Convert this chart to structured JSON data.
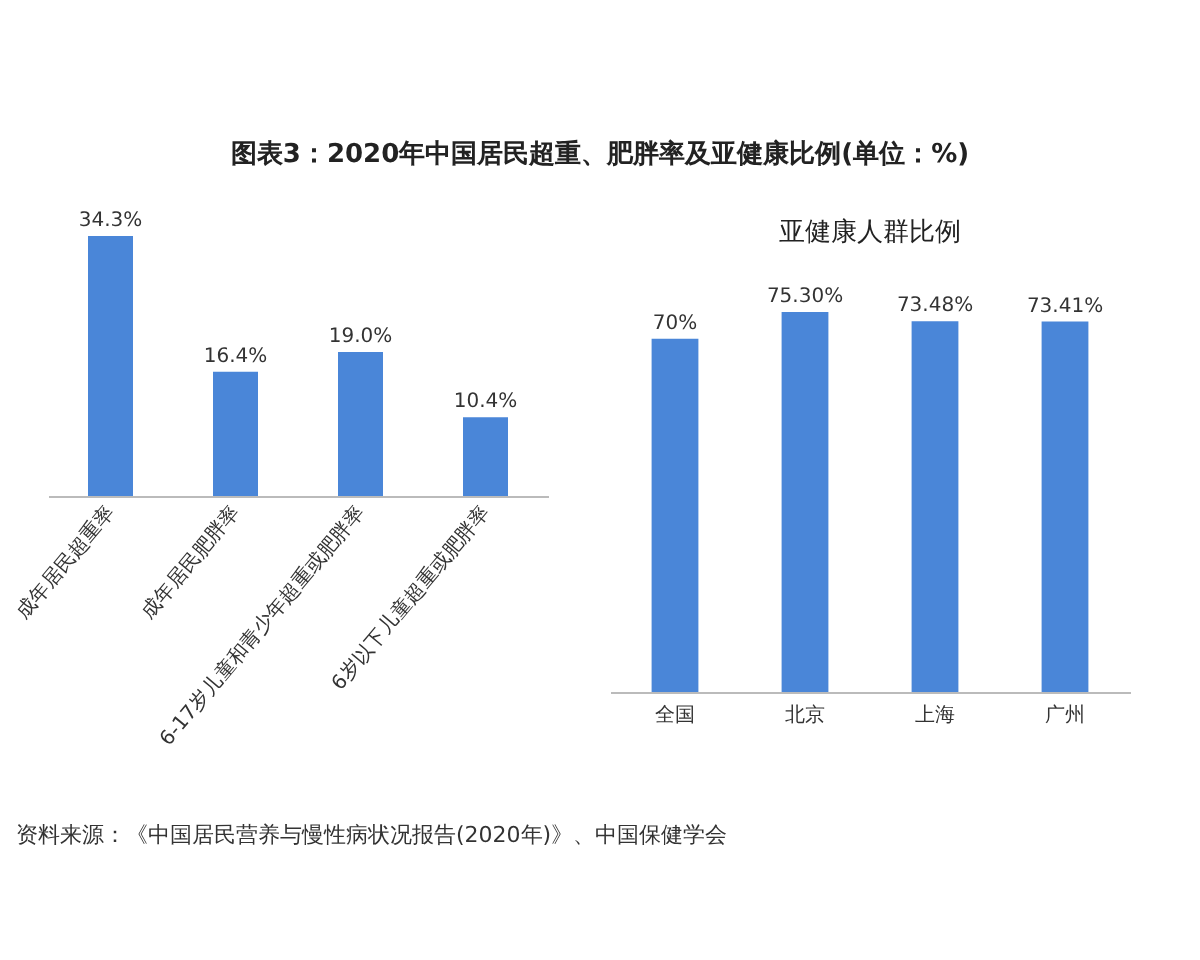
{
  "chart_data": [
    {
      "type": "bar",
      "title": "图表3：2020年中国居民超重、肥胖率及亚健康比例(单位：%)",
      "annotations": [
        "资料来源：《中国居民营养与慢性病状况报告(2020年)》、中国保健学会"
      ],
      "categories": [
        "成年居民超重率",
        "成年居民肥胖率",
        "6-17岁儿童和青少年超重或肥胖率",
        "6岁以下儿童超重或肥胖率"
      ],
      "series": [
        {
          "color": "#4a86d8",
          "values": [
            34.3,
            16.4,
            19.0,
            10.4
          ],
          "value_labels": [
            "34.3%",
            "16.4%",
            "19.0%",
            "10.4%"
          ]
        }
      ],
      "grid": false
    },
    {
      "type": "bar",
      "title": "亚健康人群比例",
      "categories": [
        "全国",
        "北京",
        "上海",
        "广州"
      ],
      "series": [
        {
          "color": "#4a86d8",
          "values": [
            70,
            75.3,
            73.48,
            73.41
          ],
          "value_labels": [
            "70%",
            "75.30%",
            "73.48%",
            "73.41%"
          ]
        }
      ],
      "grid": false
    }
  ]
}
